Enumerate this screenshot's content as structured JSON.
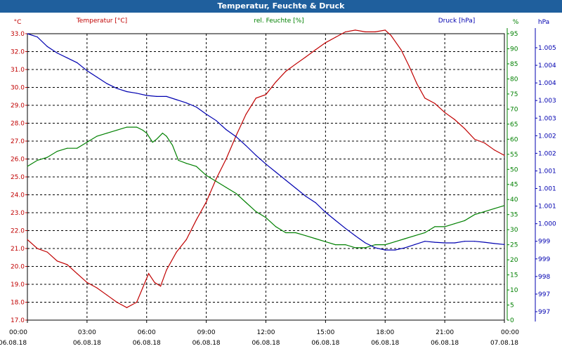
{
  "window": {
    "title": "Temperatur, Feuchte & Druck"
  },
  "colors": {
    "temperature": "#c00000",
    "humidity": "#008000",
    "pressure": "#0000b0",
    "grid": "#000000"
  },
  "chart_data": {
    "type": "line",
    "title": "Temperatur, Feuchte & Druck",
    "x_ticks": [
      {
        "time": "00:00",
        "date": "06.08.18"
      },
      {
        "time": "03:00",
        "date": "06.08.18"
      },
      {
        "time": "06:00",
        "date": "06.08.18"
      },
      {
        "time": "09:00",
        "date": "06.08.18"
      },
      {
        "time": "12:00",
        "date": "06.08.18"
      },
      {
        "time": "15:00",
        "date": "06.08.18"
      },
      {
        "time": "18:00",
        "date": "06.08.18"
      },
      {
        "time": "21:00",
        "date": "06.08.18"
      },
      {
        "time": "00:00",
        "date": "07.08.18"
      }
    ],
    "x_range_hours": [
      0,
      24
    ],
    "axes": {
      "temperature": {
        "unit_label": "°C",
        "legend": "Temperatur [°C]",
        "range": [
          17.0,
          33.0
        ],
        "ticks": [
          "17.0",
          "18.0",
          "19.0",
          "20.0",
          "21.0",
          "22.0",
          "23.0",
          "24.0",
          "25.0",
          "26.0",
          "27.0",
          "28.0",
          "29.0",
          "30.0",
          "31.0",
          "32.0",
          "33.0"
        ]
      },
      "humidity": {
        "unit_label": "%",
        "legend": "rel. Feuchte [%]",
        "range": [
          0,
          95
        ],
        "ticks": [
          "0",
          "5",
          "10",
          "15",
          "20",
          "25",
          "30",
          "35",
          "40",
          "45",
          "50",
          "55",
          "60",
          "65",
          "70",
          "75",
          "80",
          "85",
          "90",
          "95"
        ]
      },
      "pressure": {
        "unit_label": "hPa",
        "legend": "Druck [hPa]",
        "range": [
          996.6,
          1005.5
        ],
        "ticks": [
          "997",
          "997",
          "998",
          "999",
          "999",
          "1.000",
          "1.001",
          "1.001",
          "1.001",
          "1.002",
          "1.002",
          "1.003",
          "1.003",
          "1.004",
          "1.004",
          "1.005"
        ]
      }
    },
    "series": [
      {
        "name": "Temperatur",
        "axis": "temperature",
        "points": [
          [
            0,
            21.5
          ],
          [
            0.5,
            21.0
          ],
          [
            1,
            20.8
          ],
          [
            1.5,
            20.3
          ],
          [
            2,
            20.1
          ],
          [
            2.5,
            19.6
          ],
          [
            3,
            19.1
          ],
          [
            3.5,
            18.8
          ],
          [
            4,
            18.4
          ],
          [
            4.5,
            18.0
          ],
          [
            5,
            17.7
          ],
          [
            5.5,
            18.0
          ],
          [
            5.8,
            18.8
          ],
          [
            6.1,
            19.6
          ],
          [
            6.4,
            19.1
          ],
          [
            6.7,
            18.9
          ],
          [
            7,
            19.8
          ],
          [
            7.5,
            20.8
          ],
          [
            8,
            21.5
          ],
          [
            8.5,
            22.6
          ],
          [
            9,
            23.6
          ],
          [
            9.5,
            24.9
          ],
          [
            10,
            26.0
          ],
          [
            10.5,
            27.3
          ],
          [
            11,
            28.5
          ],
          [
            11.5,
            29.4
          ],
          [
            12,
            29.6
          ],
          [
            12.5,
            30.3
          ],
          [
            13,
            30.9
          ],
          [
            13.5,
            31.3
          ],
          [
            14,
            31.7
          ],
          [
            14.5,
            32.1
          ],
          [
            15,
            32.5
          ],
          [
            15.5,
            32.8
          ],
          [
            16,
            33.1
          ],
          [
            16.5,
            33.2
          ],
          [
            17,
            33.1
          ],
          [
            17.5,
            33.1
          ],
          [
            18,
            33.2
          ],
          [
            18.3,
            32.9
          ],
          [
            18.8,
            32.1
          ],
          [
            19.2,
            31.2
          ],
          [
            19.6,
            30.2
          ],
          [
            20,
            29.4
          ],
          [
            20.5,
            29.1
          ],
          [
            21,
            28.6
          ],
          [
            21.5,
            28.2
          ],
          [
            22,
            27.7
          ],
          [
            22.5,
            27.1
          ],
          [
            23,
            26.9
          ],
          [
            23.5,
            26.5
          ],
          [
            24,
            26.2
          ]
        ]
      },
      {
        "name": "rel. Feuchte",
        "axis": "humidity",
        "points": [
          [
            0,
            51
          ],
          [
            0.5,
            53
          ],
          [
            1,
            54
          ],
          [
            1.5,
            56
          ],
          [
            2,
            57
          ],
          [
            2.5,
            57
          ],
          [
            3,
            59
          ],
          [
            3.5,
            61
          ],
          [
            4,
            62
          ],
          [
            4.5,
            63
          ],
          [
            5,
            64
          ],
          [
            5.5,
            64
          ],
          [
            5.8,
            63
          ],
          [
            6,
            62
          ],
          [
            6.3,
            59
          ],
          [
            6.5,
            60
          ],
          [
            6.8,
            62
          ],
          [
            7,
            61
          ],
          [
            7.3,
            58
          ],
          [
            7.6,
            53
          ],
          [
            8,
            52
          ],
          [
            8.5,
            51
          ],
          [
            9,
            48
          ],
          [
            9.5,
            46
          ],
          [
            10,
            44
          ],
          [
            10.5,
            42
          ],
          [
            11,
            39
          ],
          [
            11.5,
            36
          ],
          [
            12,
            34
          ],
          [
            12.5,
            31
          ],
          [
            13,
            29
          ],
          [
            13.5,
            29
          ],
          [
            14,
            28
          ],
          [
            14.5,
            27
          ],
          [
            15,
            26
          ],
          [
            15.5,
            25
          ],
          [
            16,
            25
          ],
          [
            16.5,
            24
          ],
          [
            17,
            24
          ],
          [
            17.5,
            25
          ],
          [
            18,
            25
          ],
          [
            18.5,
            26
          ],
          [
            19,
            27
          ],
          [
            19.5,
            28
          ],
          [
            20,
            29
          ],
          [
            20.5,
            31
          ],
          [
            21,
            31
          ],
          [
            21.5,
            32
          ],
          [
            22,
            33
          ],
          [
            22.5,
            35
          ],
          [
            23,
            36
          ],
          [
            23.5,
            37
          ],
          [
            24,
            38
          ]
        ]
      },
      {
        "name": "Druck",
        "axis": "pressure",
        "points": [
          [
            0,
            1005.5
          ],
          [
            0.5,
            1005.4
          ],
          [
            1,
            1005.1
          ],
          [
            1.5,
            1004.9
          ],
          [
            2,
            1004.75
          ],
          [
            2.5,
            1004.6
          ],
          [
            3,
            1004.35
          ],
          [
            3.5,
            1004.15
          ],
          [
            4,
            1003.95
          ],
          [
            4.5,
            1003.8
          ],
          [
            5,
            1003.7
          ],
          [
            5.5,
            1003.65
          ],
          [
            6,
            1003.58
          ],
          [
            6.5,
            1003.55
          ],
          [
            7,
            1003.55
          ],
          [
            7.5,
            1003.45
          ],
          [
            8,
            1003.35
          ],
          [
            8.5,
            1003.22
          ],
          [
            9,
            1003.0
          ],
          [
            9.5,
            1002.8
          ],
          [
            10,
            1002.52
          ],
          [
            10.5,
            1002.3
          ],
          [
            11,
            1002.02
          ],
          [
            11.5,
            1001.72
          ],
          [
            12,
            1001.45
          ],
          [
            12.5,
            1001.2
          ],
          [
            13,
            1000.95
          ],
          [
            13.5,
            1000.7
          ],
          [
            14,
            1000.45
          ],
          [
            14.5,
            1000.25
          ],
          [
            15,
            999.95
          ],
          [
            15.5,
            999.7
          ],
          [
            16,
            999.45
          ],
          [
            16.5,
            999.22
          ],
          [
            17,
            999.0
          ],
          [
            17.5,
            998.85
          ],
          [
            18,
            998.78
          ],
          [
            18.5,
            998.78
          ],
          [
            19,
            998.85
          ],
          [
            19.5,
            998.95
          ],
          [
            20,
            999.05
          ],
          [
            20.5,
            999.02
          ],
          [
            21,
            999.0
          ],
          [
            21.5,
            999.0
          ],
          [
            22,
            999.05
          ],
          [
            22.5,
            999.05
          ],
          [
            23,
            999.02
          ],
          [
            23.5,
            998.98
          ],
          [
            24,
            998.95
          ]
        ]
      }
    ]
  }
}
